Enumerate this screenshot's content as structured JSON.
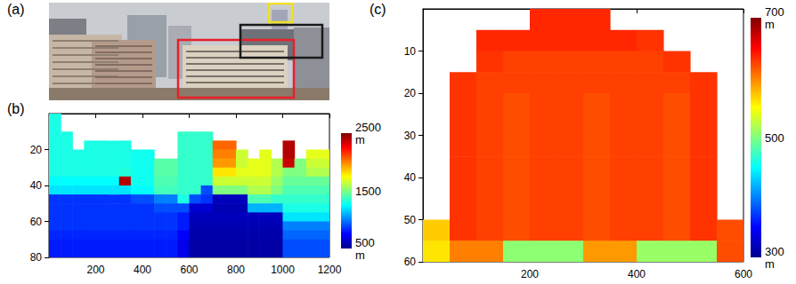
{
  "chart_data": [
    {
      "type": "image",
      "title": "(a)",
      "colors": [
        "#e8202a",
        "#1a1a1a",
        "#f0e020"
      ]
    },
    {
      "type": "heatmap",
      "title": "(b)",
      "xlim": [
        0,
        1200
      ],
      "ylim": [
        0,
        80
      ],
      "xticks": [
        200,
        400,
        600,
        800,
        1000,
        1200
      ],
      "yticks": [
        20,
        40,
        60,
        80
      ],
      "x_edges": [
        0,
        50,
        100,
        150,
        200,
        250,
        300,
        350,
        400,
        450,
        500,
        550,
        600,
        650,
        700,
        750,
        800,
        850,
        900,
        950,
        1000,
        1050,
        1100,
        1150,
        1200
      ],
      "y_edges": [
        0,
        5,
        10,
        15,
        20,
        25,
        30,
        35,
        40,
        45,
        50,
        55,
        60,
        65,
        70,
        75,
        80
      ],
      "cells": [
        [
          1300,
          null,
          null,
          null,
          null,
          null,
          null,
          null,
          null,
          null,
          null,
          null,
          null,
          null,
          null,
          null,
          null,
          null,
          null,
          null,
          null,
          null,
          null,
          null
        ],
        [
          1300,
          null,
          null,
          null,
          null,
          null,
          null,
          null,
          null,
          null,
          null,
          null,
          null,
          null,
          null,
          null,
          null,
          null,
          null,
          null,
          null,
          null,
          null,
          null
        ],
        [
          1300,
          1300,
          null,
          null,
          null,
          null,
          null,
          null,
          null,
          null,
          null,
          1350,
          1350,
          1350,
          null,
          null,
          null,
          null,
          null,
          null,
          null,
          null,
          null,
          null
        ],
        [
          1300,
          1300,
          null,
          1300,
          1300,
          1300,
          1300,
          null,
          null,
          null,
          null,
          1350,
          1350,
          1350,
          2050,
          2050,
          null,
          null,
          null,
          null,
          2400,
          null,
          null,
          null
        ],
        [
          1300,
          1300,
          1300,
          1300,
          1300,
          1300,
          1300,
          1280,
          1280,
          null,
          null,
          1350,
          1350,
          1350,
          2000,
          2000,
          1650,
          null,
          1700,
          null,
          2400,
          null,
          1700,
          1700
        ],
        [
          1300,
          1300,
          1300,
          1300,
          1300,
          1300,
          1300,
          1280,
          1280,
          1420,
          1420,
          1350,
          1350,
          1350,
          1950,
          1950,
          1650,
          1700,
          1700,
          1600,
          2350,
          1500,
          1650,
          1650
        ],
        [
          1300,
          1300,
          1300,
          1300,
          1300,
          1300,
          1320,
          1280,
          1280,
          1420,
          1420,
          1350,
          1350,
          1350,
          1800,
          1800,
          1700,
          1700,
          1700,
          1600,
          1500,
          1500,
          1600,
          1600
        ],
        [
          1250,
          1250,
          1250,
          1250,
          1250,
          1250,
          2400,
          1280,
          1280,
          1400,
          1400,
          1350,
          1350,
          1350,
          1650,
          1650,
          1650,
          1650,
          1650,
          1550,
          1450,
          1450,
          1450,
          1450
        ],
        [
          1200,
          1200,
          1200,
          1200,
          1200,
          1200,
          1200,
          1250,
          1250,
          1380,
          1380,
          1350,
          1350,
          900,
          1500,
          1500,
          1500,
          1600,
          1600,
          1500,
          1400,
          1400,
          1400,
          1400
        ],
        [
          850,
          850,
          850,
          850,
          850,
          850,
          850,
          900,
          900,
          1000,
          1000,
          1300,
          900,
          850,
          600,
          600,
          600,
          1400,
          1400,
          1350,
          1350,
          1350,
          1350,
          1350
        ],
        [
          850,
          850,
          850,
          850,
          850,
          850,
          850,
          850,
          850,
          900,
          900,
          900,
          650,
          650,
          580,
          580,
          580,
          1100,
          1100,
          1100,
          1300,
          1300,
          1300,
          1300
        ],
        [
          850,
          850,
          850,
          850,
          850,
          850,
          850,
          850,
          850,
          850,
          850,
          800,
          600,
          600,
          600,
          600,
          600,
          600,
          600,
          600,
          1200,
          1200,
          1200,
          1200
        ],
        [
          850,
          850,
          850,
          850,
          850,
          850,
          850,
          850,
          850,
          850,
          850,
          800,
          580,
          580,
          580,
          580,
          580,
          580,
          580,
          580,
          1000,
          1000,
          1000,
          1000
        ],
        [
          820,
          820,
          820,
          820,
          820,
          820,
          820,
          820,
          820,
          820,
          820,
          750,
          560,
          560,
          560,
          560,
          560,
          560,
          560,
          560,
          950,
          950,
          950,
          950
        ],
        [
          800,
          800,
          800,
          800,
          800,
          800,
          800,
          800,
          800,
          800,
          800,
          700,
          550,
          550,
          550,
          550,
          550,
          550,
          550,
          550,
          900,
          900,
          900,
          900
        ],
        [
          800,
          800,
          800,
          800,
          800,
          800,
          800,
          800,
          800,
          800,
          800,
          700,
          550,
          550,
          550,
          550,
          550,
          550,
          550,
          550,
          900,
          900,
          900,
          900
        ]
      ],
      "colorbar": {
        "range": [
          500,
          2500
        ],
        "ticks": [
          {
            "value": 500,
            "label": "500\nm"
          },
          1500,
          {
            "value": 2500,
            "label": "2500\nm"
          }
        ]
      }
    },
    {
      "type": "heatmap",
      "title": "(c)",
      "xlim": [
        0,
        600
      ],
      "ylim": [
        0,
        60
      ],
      "xticks": [
        200,
        400,
        600
      ],
      "yticks": [
        10,
        20,
        30,
        40,
        50,
        60
      ],
      "x_edges": [
        0,
        50,
        100,
        150,
        200,
        250,
        300,
        350,
        400,
        450,
        500,
        550,
        600
      ],
      "y_edges": [
        0,
        5,
        10,
        15,
        20,
        25,
        30,
        35,
        40,
        45,
        50,
        55,
        60
      ],
      "cells": [
        [
          null,
          null,
          null,
          null,
          635,
          635,
          635,
          null,
          null,
          null,
          null,
          null
        ],
        [
          null,
          null,
          635,
          635,
          635,
          635,
          635,
          635,
          630,
          null,
          null,
          null
        ],
        [
          null,
          null,
          630,
          625,
          625,
          625,
          625,
          625,
          625,
          630,
          null,
          null
        ],
        [
          null,
          630,
          625,
          625,
          625,
          625,
          625,
          625,
          625,
          625,
          630,
          null
        ],
        [
          null,
          630,
          625,
          620,
          625,
          625,
          620,
          625,
          625,
          620,
          630,
          null
        ],
        [
          null,
          630,
          625,
          620,
          625,
          625,
          620,
          625,
          625,
          620,
          630,
          null
        ],
        [
          null,
          630,
          625,
          620,
          625,
          625,
          620,
          625,
          625,
          620,
          630,
          null
        ],
        [
          null,
          630,
          625,
          620,
          625,
          625,
          620,
          625,
          625,
          620,
          630,
          null
        ],
        [
          null,
          630,
          625,
          620,
          625,
          625,
          620,
          625,
          625,
          620,
          630,
          null
        ],
        [
          null,
          630,
          625,
          620,
          625,
          625,
          620,
          625,
          625,
          620,
          630,
          null
        ],
        [
          570,
          630,
          625,
          620,
          625,
          625,
          620,
          625,
          625,
          620,
          630,
          620
        ],
        [
          560,
          600,
          600,
          505,
          505,
          505,
          590,
          590,
          510,
          510,
          510,
          620
        ]
      ],
      "colorbar": {
        "range": [
          300,
          700
        ],
        "ticks": [
          {
            "value": 300,
            "label": "300\nm"
          },
          500,
          {
            "value": 700,
            "label": "700\nm"
          }
        ]
      }
    }
  ]
}
